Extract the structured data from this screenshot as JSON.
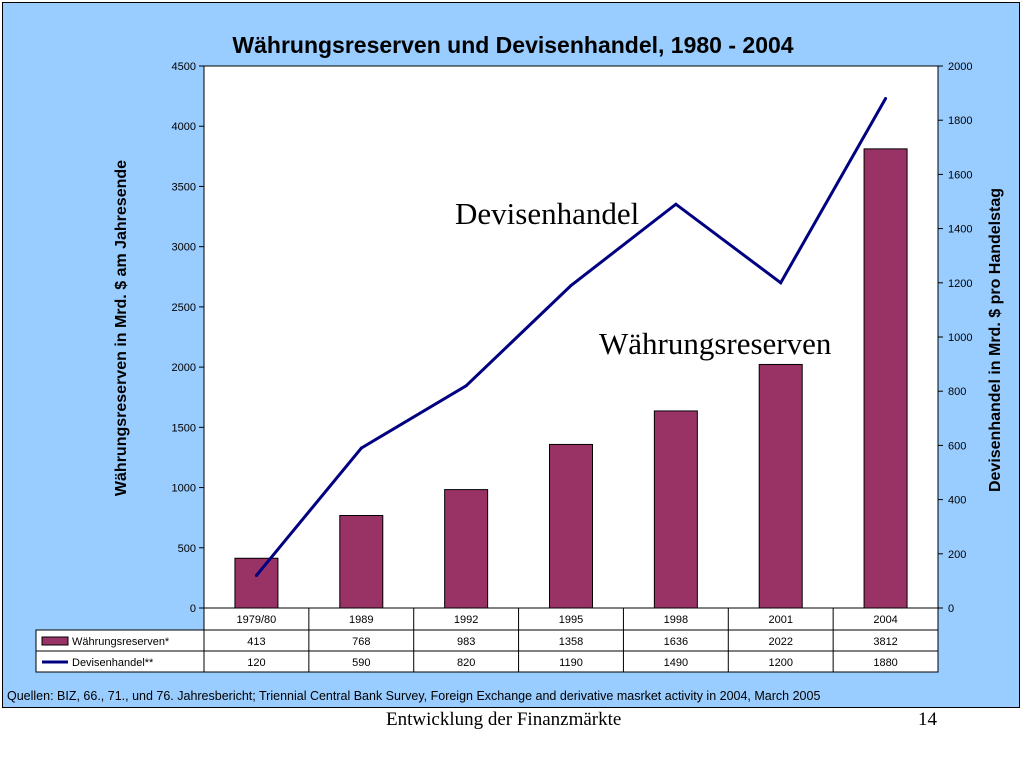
{
  "colors": {
    "panel_background": "#99ccff",
    "plot_background": "#ffffff",
    "bar_fill": "#993366",
    "line": "#000080"
  },
  "chart_data": {
    "type": "bar+line",
    "title": "Währungsreserven und Devisenhandel, 1980 - 2004",
    "categories": [
      "1979/80",
      "1989",
      "1992",
      "1995",
      "1998",
      "2001",
      "2004"
    ],
    "series": [
      {
        "name": "Währungsreserven*",
        "type": "bar",
        "axis": "left",
        "values": [
          413,
          768,
          983,
          1358,
          1636,
          2022,
          3812
        ]
      },
      {
        "name": "Devisenhandel**",
        "type": "line",
        "axis": "right",
        "values": [
          120,
          590,
          820,
          1190,
          1490,
          1200,
          1880
        ]
      }
    ],
    "ylabel": "Währungsreserven in Mrd. $ am Jahresende",
    "y2label": "Devisenhandel in Mrd. $ pro Handelstag",
    "ylim": [
      0,
      4500
    ],
    "y2lim": [
      0,
      2000
    ],
    "yticks": [
      "0",
      "500",
      "1000",
      "1500",
      "2000",
      "2500",
      "3000",
      "3500",
      "4000",
      "4500"
    ],
    "y2ticks": [
      "0",
      "200",
      "400",
      "600",
      "800",
      "1000",
      "1200",
      "1400",
      "1600",
      "1800",
      "2000"
    ],
    "annotations": [
      "Devisenhandel",
      "Währungsreserven"
    ],
    "source": "Quellen: BIZ, 66., 71., und 76. Jahresbericht; Triennial Central Bank Survey, Foreign Exchange and derivative masrket activity in 2004, March 2005",
    "grid": false,
    "legend": "data-table-below-chart"
  },
  "footer": {
    "title": "Entwicklung der Finanzmärkte",
    "page": "14"
  }
}
